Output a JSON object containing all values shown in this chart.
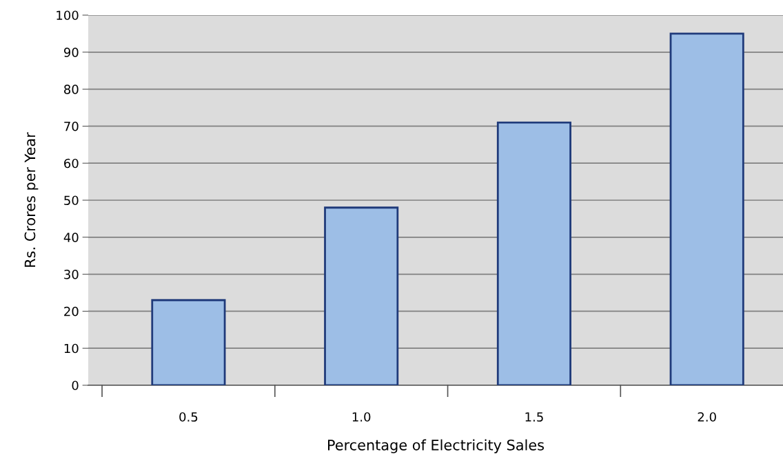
{
  "chart_data": {
    "type": "bar",
    "xlabel": "Percentage of Electricity Sales",
    "ylabel": "Rs. Crores per Year",
    "categories": [
      "0.5",
      "1.0",
      "1.5",
      "2.0"
    ],
    "values": [
      23,
      48,
      71,
      95
    ],
    "color": "#9dbee6",
    "ylim": [
      0,
      100
    ],
    "yticks": [
      0,
      10,
      20,
      30,
      40,
      50,
      60,
      70,
      80,
      90,
      100
    ],
    "grid": "y",
    "legend": false
  }
}
